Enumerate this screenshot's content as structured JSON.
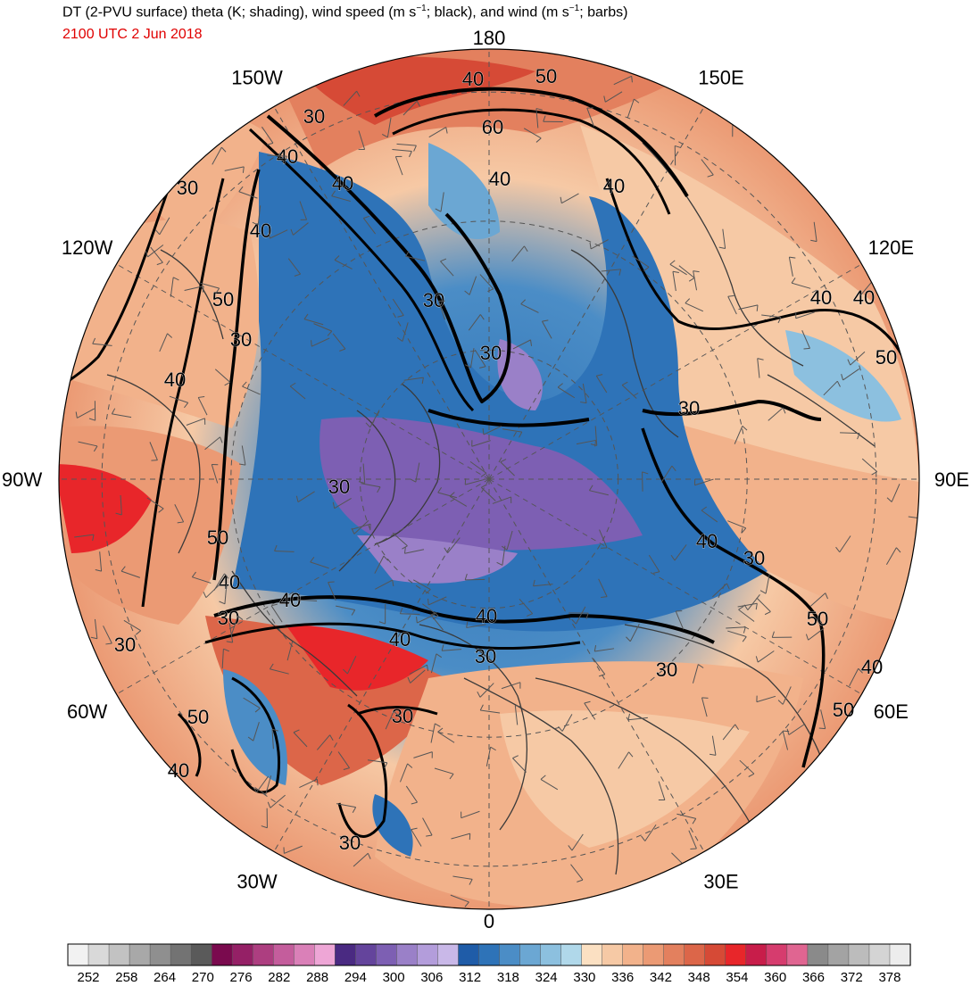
{
  "header": {
    "title_parts": [
      "DT (2-PVU surface) theta (K; shading), wind speed (m s",
      "−1",
      "; black), and wind (m s",
      "−1",
      "; barbs)"
    ],
    "valid_time": "2100 UTC 2 Jun 2018"
  },
  "map": {
    "projection": "north-polar-stereographic",
    "longitude_labels": [
      {
        "text": "180",
        "lon": 180
      },
      {
        "text": "150E",
        "lon": 150
      },
      {
        "text": "120E",
        "lon": 120
      },
      {
        "text": "90E",
        "lon": 90
      },
      {
        "text": "60E",
        "lon": 60
      },
      {
        "text": "30E",
        "lon": 30
      },
      {
        "text": "0",
        "lon": 0
      },
      {
        "text": "30W",
        "lon": -30
      },
      {
        "text": "60W",
        "lon": -60
      },
      {
        "text": "90W",
        "lon": -90
      },
      {
        "text": "120W",
        "lon": -120
      },
      {
        "text": "150W",
        "lon": -150
      }
    ],
    "wind_speed_contour_labels": [
      "30",
      "40",
      "50",
      "60"
    ]
  },
  "colorbar": {
    "tick_labels": [
      "252",
      "258",
      "264",
      "270",
      "276",
      "282",
      "288",
      "294",
      "300",
      "306",
      "312",
      "318",
      "324",
      "330",
      "336",
      "342",
      "348",
      "354",
      "360",
      "366",
      "372",
      "378"
    ],
    "colors": [
      "#f2f2f2",
      "#d9d9d9",
      "#c2c2c2",
      "#a8a8a8",
      "#8f8f8f",
      "#737373",
      "#5a5a5a",
      "#7a0a4e",
      "#952066",
      "#ad3e80",
      "#c45d9c",
      "#da80b8",
      "#eea6d6",
      "#4a2a82",
      "#64449c",
      "#7d5fb3",
      "#9a80c8",
      "#b39ddb",
      "#c9b8e8",
      "#1f5ca8",
      "#2e73b8",
      "#4b8dc6",
      "#6ba7d3",
      "#8cc0df",
      "#b0d8ea",
      "#fbe0c2",
      "#f6c9a5",
      "#f2b28b",
      "#eb9a74",
      "#e3805e",
      "#dc6649",
      "#d64a36",
      "#e8262a",
      "#c81d4a",
      "#d63c6e",
      "#e06591",
      "#8a8a8a",
      "#a3a3a3",
      "#bcbcbc",
      "#d4d4d4",
      "#ededed"
    ]
  }
}
